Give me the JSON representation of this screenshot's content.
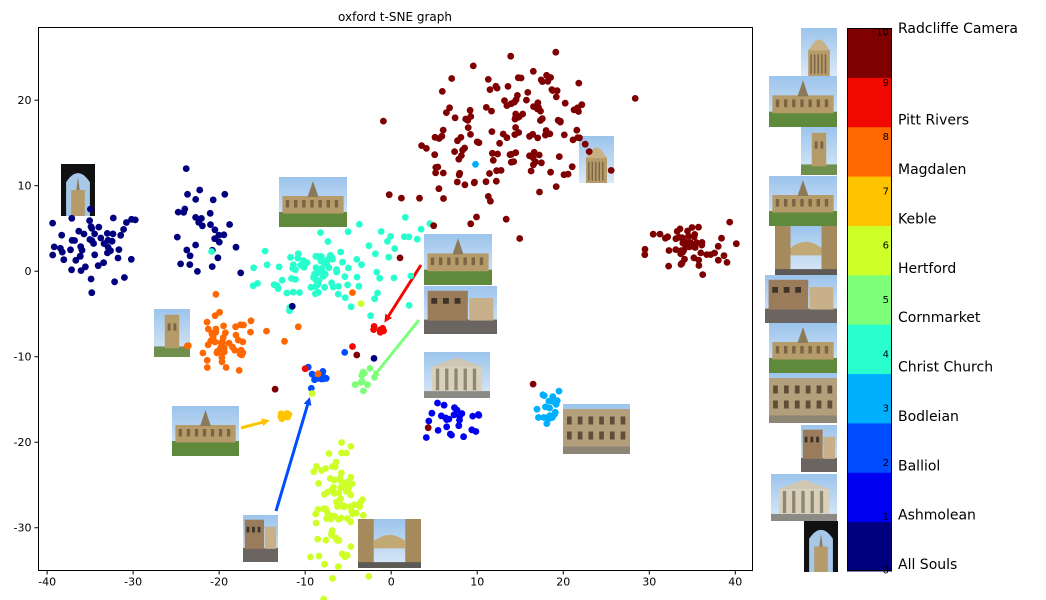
{
  "chart_data": {
    "type": "scatter",
    "title": "oxford t-SNE graph",
    "xlabel": "",
    "ylabel": "",
    "xlim": [
      -41,
      42
    ],
    "ylim": [
      -35,
      28.5
    ],
    "xticks": [
      -40,
      -30,
      -20,
      -10,
      0,
      10,
      20,
      30,
      40
    ],
    "yticks": [
      20,
      10,
      0,
      -10,
      -20,
      -30
    ],
    "grid": false,
    "legend": "colorbar-right",
    "colorbar": {
      "range": [
        0,
        10
      ],
      "ticks": [
        0,
        1,
        2,
        3,
        4,
        5,
        6,
        7,
        8,
        9,
        10
      ],
      "labels": [
        "All Souls",
        "Ashmolean",
        "Balliol",
        "Bodleian",
        "Christ Church",
        "Cornmarket",
        "Hertford",
        "Keble",
        "Magdalen",
        "Pitt Rivers",
        "Radcliffe Camera"
      ],
      "colors": [
        "#00007f",
        "#0000f1",
        "#004cff",
        "#00b0ff",
        "#29ffce",
        "#7dff7a",
        "#ceff29",
        "#ffc400",
        "#ff6800",
        "#f10800",
        "#7f0000"
      ]
    },
    "clusters": [
      {
        "name": "All Souls",
        "color": "#00007f",
        "cx": -34,
        "cy": 3,
        "sx": 2.6,
        "sy": 2.1,
        "n": 55
      },
      {
        "name": "All Souls",
        "color": "#00007f",
        "cx": -22.5,
        "cy": 4.5,
        "sx": 2.1,
        "sy": 3.0,
        "n": 32
      },
      {
        "name": "Ashmolean",
        "color": "#0000f1",
        "cx": 7.5,
        "cy": -17.8,
        "sx": 1.8,
        "sy": 1.1,
        "n": 26
      },
      {
        "name": "Balliol",
        "color": "#004cff",
        "cx": -8.5,
        "cy": -12.3,
        "sx": 0.5,
        "sy": 1.0,
        "n": 12
      },
      {
        "name": "Bodleian",
        "color": "#00b0ff",
        "cx": 18,
        "cy": -15.8,
        "sx": 1.0,
        "sy": 1.2,
        "n": 22
      },
      {
        "name": "Christ Church",
        "color": "#29ffce",
        "cx": -8,
        "cy": 0,
        "sx": 3.7,
        "sy": 2.0,
        "n": 95
      },
      {
        "name": "Christ Church",
        "color": "#29ffce",
        "cx": 1.5,
        "cy": 5.2,
        "sx": 1.8,
        "sy": 1.2,
        "n": 10
      },
      {
        "name": "Cornmarket",
        "color": "#7dff7a",
        "cx": -3,
        "cy": -13,
        "sx": 0.6,
        "sy": 0.7,
        "n": 10
      },
      {
        "name": "Hertford",
        "color": "#ceff29",
        "cx": -6.2,
        "cy": -27.5,
        "sx": 1.6,
        "sy": 3.2,
        "n": 85
      },
      {
        "name": "Keble",
        "color": "#ffc400",
        "cx": -12.5,
        "cy": -16.8,
        "sx": 0.5,
        "sy": 0.4,
        "n": 8
      },
      {
        "name": "Magdalen",
        "color": "#ff6800",
        "cx": -19.5,
        "cy": -8.6,
        "sx": 2.0,
        "sy": 1.8,
        "n": 48
      },
      {
        "name": "Pitt Rivers",
        "color": "#f10800",
        "cx": -1.3,
        "cy": -6.9,
        "sx": 0.5,
        "sy": 0.3,
        "n": 6
      },
      {
        "name": "Radcliffe Camera",
        "color": "#7f0000",
        "cx": 8.5,
        "cy": 13,
        "sx": 3.3,
        "sy": 4.5,
        "n": 60
      },
      {
        "name": "Radcliffe Camera",
        "color": "#7f0000",
        "cx": 17,
        "cy": 17.5,
        "sx": 3.6,
        "sy": 3.4,
        "n": 95
      },
      {
        "name": "Radcliffe Camera",
        "color": "#7f0000",
        "cx": 34.5,
        "cy": 2.5,
        "sx": 2.4,
        "sy": 1.6,
        "n": 55
      }
    ]
  }
}
